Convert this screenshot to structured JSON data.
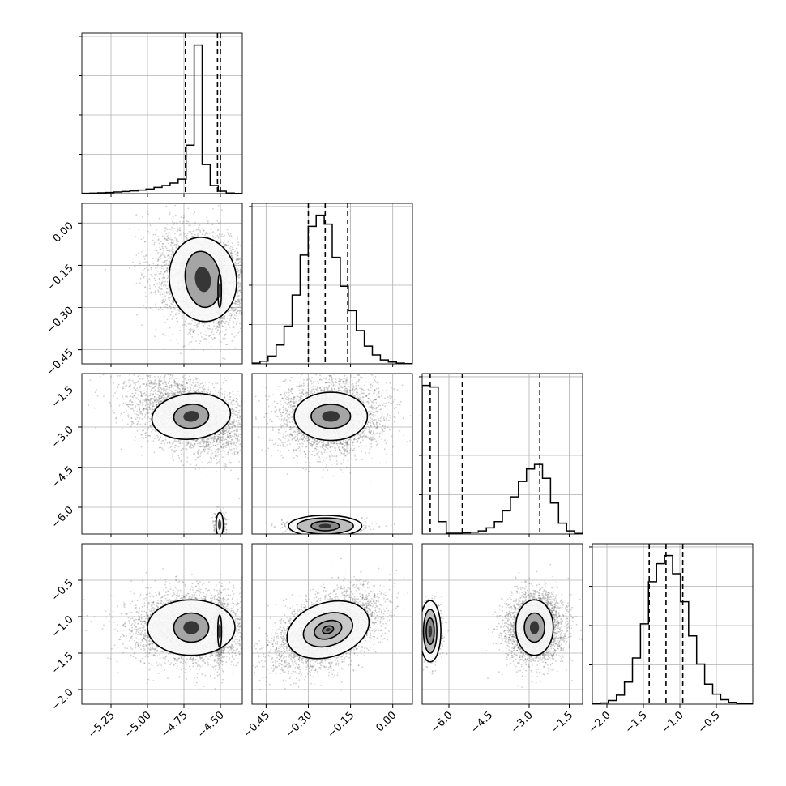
{
  "chart_data": {
    "type": "corner",
    "style": {
      "grid": true,
      "panel_border": "#000000",
      "grid_color": "#b0b0b0",
      "scatter_color": "#555555",
      "contour_color": "#000000"
    },
    "params": [
      {
        "range": [
          -5.45,
          -4.35
        ],
        "ticks": [
          -5.25,
          -5.0,
          -4.75,
          -4.5
        ],
        "tick_labels": [
          "−5.25",
          "−5.00",
          "−4.75",
          "−4.50"
        ]
      },
      {
        "range": [
          -0.5,
          0.07
        ],
        "ticks": [
          -0.45,
          -0.3,
          -0.15,
          0.0
        ],
        "tick_labels": [
          "−0.45",
          "−0.30",
          "−0.15",
          "0.00"
        ]
      },
      {
        "range": [
          -7.0,
          -1.0
        ],
        "ticks": [
          -6.0,
          -4.5,
          -3.0,
          -1.5
        ],
        "tick_labels": [
          "−6.0",
          "−4.5",
          "−3.0",
          "−1.5"
        ]
      },
      {
        "range": [
          -2.2,
          0.0
        ],
        "ticks": [
          -2.0,
          -1.5,
          -1.0,
          -0.5
        ],
        "tick_labels": [
          "−2.0",
          "−1.5",
          "−1.0",
          "−0.5"
        ]
      }
    ],
    "histograms": [
      {
        "param": 0,
        "edges_start": -5.45,
        "bin_width": 0.055,
        "counts": [
          0.2,
          0.3,
          0.5,
          0.7,
          1.0,
          1.3,
          1.7,
          2.2,
          2.8,
          3.8,
          5.0,
          6.5,
          9.0,
          30.0,
          92.0,
          18.0,
          5.0,
          1.5,
          0.4,
          0.1
        ],
        "quantiles": [
          -4.74,
          -4.52,
          -4.5
        ]
      },
      {
        "param": 1,
        "edges_start": -0.5,
        "bin_width": 0.0285,
        "counts": [
          0.3,
          1.2,
          3.5,
          8.5,
          17.0,
          31.0,
          49.0,
          62.0,
          67.0,
          63.0,
          48.0,
          35.0,
          24.0,
          15.0,
          8.0,
          4.0,
          1.8,
          0.8,
          0.3,
          0.1
        ],
        "quantiles": [
          -0.3,
          -0.24,
          -0.16
        ]
      },
      {
        "param": 2,
        "edges_start": -7.0,
        "bin_width": 0.3,
        "counts": [
          96.0,
          95.0,
          8.0,
          0.5,
          0.5,
          0.8,
          1.2,
          2.0,
          4.0,
          8.0,
          15.0,
          24.0,
          34.0,
          42.0,
          45.0,
          36.0,
          20.0,
          7.0,
          2.0,
          0.4
        ],
        "quantiles": [
          -6.7,
          -5.5,
          -2.6
        ]
      },
      {
        "param": 3,
        "edges_start": -2.2,
        "bin_width": 0.11,
        "counts": [
          0.2,
          0.6,
          1.8,
          4.5,
          11.0,
          23.0,
          40.0,
          61.0,
          70.0,
          74.0,
          65.0,
          51.0,
          34.0,
          20.0,
          10.0,
          5.0,
          2.2,
          0.9,
          0.3,
          0.1
        ],
        "quantiles": [
          -1.42,
          -1.19,
          -0.96
        ]
      }
    ],
    "pairs": [
      {
        "x": 0,
        "y": 1,
        "modes": [
          {
            "cx": -4.62,
            "cy": -0.2,
            "sx": 0.17,
            "sy": 0.09,
            "rho": -0.2,
            "n": 3400,
            "contours": [
              {
                "rx": 0.23,
                "ry": 0.15,
                "rot": -8
              },
              {
                "rx": 0.12,
                "ry": 0.1,
                "rot": -8
              }
            ]
          },
          {
            "cx": -4.505,
            "cy": -0.24,
            "sx": 0.014,
            "sy": 0.055,
            "rho": 0.0,
            "n": 900,
            "contours": [
              {
                "rx": 0.012,
                "ry": 0.06,
                "rot": 0
              }
            ]
          }
        ]
      },
      {
        "x": 0,
        "y": 2,
        "modes": [
          {
            "cx": -4.7,
            "cy": -2.6,
            "sx": 0.21,
            "sy": 0.75,
            "rho": -0.45,
            "n": 3600,
            "contours": [
              {
                "rx": 0.27,
                "ry": 0.85,
                "rot": -6
              },
              {
                "rx": 0.12,
                "ry": 0.45,
                "rot": -6
              }
            ]
          },
          {
            "cx": -4.505,
            "cy": -6.65,
            "sx": 0.02,
            "sy": 0.25,
            "rho": 0.0,
            "n": 300,
            "contours": [
              {
                "rx": 0.025,
                "ry": 0.45,
                "rot": 0
              }
            ]
          }
        ]
      },
      {
        "x": 0,
        "y": 3,
        "modes": [
          {
            "cx": -4.7,
            "cy": -1.15,
            "sx": 0.21,
            "sy": 0.25,
            "rho": 0.0,
            "n": 3600,
            "contours": [
              {
                "rx": 0.3,
                "ry": 0.38,
                "rot": 0
              },
              {
                "rx": 0.12,
                "ry": 0.2,
                "rot": 0
              }
            ]
          },
          {
            "cx": -4.505,
            "cy": -1.2,
            "sx": 0.015,
            "sy": 0.2,
            "rho": 0.0,
            "n": 900,
            "contours": [
              {
                "rx": 0.013,
                "ry": 0.22,
                "rot": 0
              }
            ]
          }
        ]
      },
      {
        "x": 1,
        "y": 2,
        "modes": [
          {
            "cx": -0.22,
            "cy": -2.6,
            "sx": 0.09,
            "sy": 0.7,
            "rho": 0.0,
            "n": 3500,
            "contours": [
              {
                "rx": 0.13,
                "ry": 0.9,
                "rot": 0
              },
              {
                "rx": 0.07,
                "ry": 0.45,
                "rot": 0
              }
            ]
          },
          {
            "cx": -0.24,
            "cy": -6.7,
            "sx": 0.07,
            "sy": 0.12,
            "rho": 0.0,
            "n": 700,
            "contours": [
              {
                "rx": 0.13,
                "ry": 0.4,
                "rot": 0
              },
              {
                "rx": 0.1,
                "ry": 0.3,
                "rot": 0
              },
              {
                "rx": 0.05,
                "ry": 0.18,
                "rot": 0
              }
            ]
          }
        ]
      },
      {
        "x": 1,
        "y": 3,
        "modes": [
          {
            "cx": -0.23,
            "cy": -1.18,
            "sx": 0.09,
            "sy": 0.26,
            "rho": 0.5,
            "n": 4200,
            "contours": [
              {
                "rx": 0.15,
                "ry": 0.37,
                "rot": -18
              },
              {
                "rx": 0.09,
                "ry": 0.22,
                "rot": -18
              },
              {
                "rx": 0.05,
                "ry": 0.12,
                "rot": -18
              },
              {
                "rx": 0.02,
                "ry": 0.05,
                "rot": -18
              }
            ]
          }
        ]
      },
      {
        "x": 2,
        "y": 3,
        "modes": [
          {
            "cx": -2.8,
            "cy": -1.15,
            "sx": 0.55,
            "sy": 0.24,
            "rho": 0.0,
            "n": 3400,
            "contours": [
              {
                "rx": 0.7,
                "ry": 0.38,
                "rot": 0
              },
              {
                "rx": 0.38,
                "ry": 0.2,
                "rot": 0
              }
            ]
          },
          {
            "cx": -6.7,
            "cy": -1.2,
            "sx": 0.22,
            "sy": 0.2,
            "rho": 0.0,
            "n": 700,
            "contours": [
              {
                "rx": 0.4,
                "ry": 0.42,
                "rot": 0
              },
              {
                "rx": 0.25,
                "ry": 0.3,
                "rot": 0
              },
              {
                "rx": 0.15,
                "ry": 0.18,
                "rot": 0
              }
            ]
          }
        ]
      }
    ]
  }
}
